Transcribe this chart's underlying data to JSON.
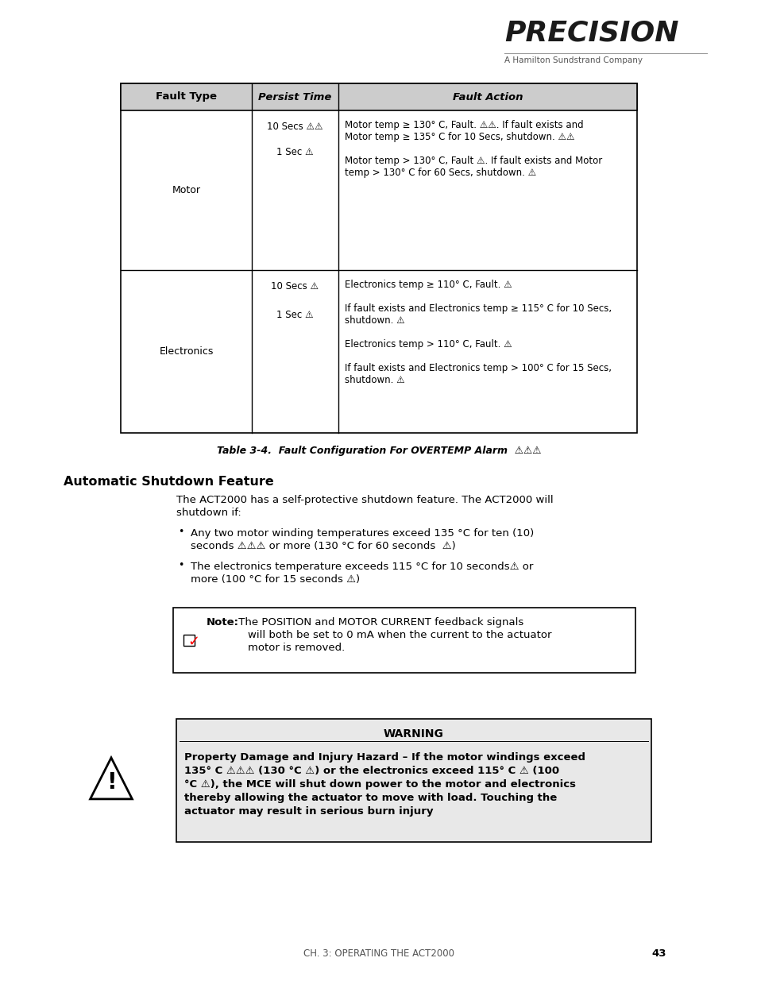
{
  "bg_color": "#ffffff",
  "logo_text": "PRECISION",
  "logo_subtitle": "A Hamilton Sundstrand Company",
  "table_header": [
    "Fault Type",
    "Persist Time",
    "Fault Action"
  ],
  "section_title": "Automatic Shutdown Feature",
  "bullet1_line1": "Any two motor winding temperatures exceed 135 °C for ten (10)",
  "bullet1_line2": "seconds ⚠⚠⚠ or more (130 °C for 60 seconds  ⚠)",
  "bullet2_line1": "The electronics temperature exceeds 115 °C for 10 seconds⚠ or",
  "bullet2_line2": "more (100 °C for 15 seconds ⚠)",
  "note_label": "Note:",
  "note_body1": " The POSITION and MOTOR CURRENT feedback signals",
  "note_body2": "will both be set to 0 mA when the current to the actuator",
  "note_body3": "motor is removed.",
  "warning_title": "WARNING",
  "warning_body1": "Property Damage and Injury Hazard – If the motor windings exceed",
  "warning_body2": "135° C ⚠⚠⚠ (130 °C ⚠) or the electronics exceed 115° C ⚠ (100",
  "warning_body3": "°C ⚠), the MCE will shut down power to the motor and electronics",
  "warning_body4": "thereby allowing the actuator to move with load. Touching the",
  "warning_body5": "actuator may result in serious burn injury",
  "footer_text": "CH. 3: OPERATING THE ACT2000",
  "footer_page": "43",
  "tri": "⚠"
}
